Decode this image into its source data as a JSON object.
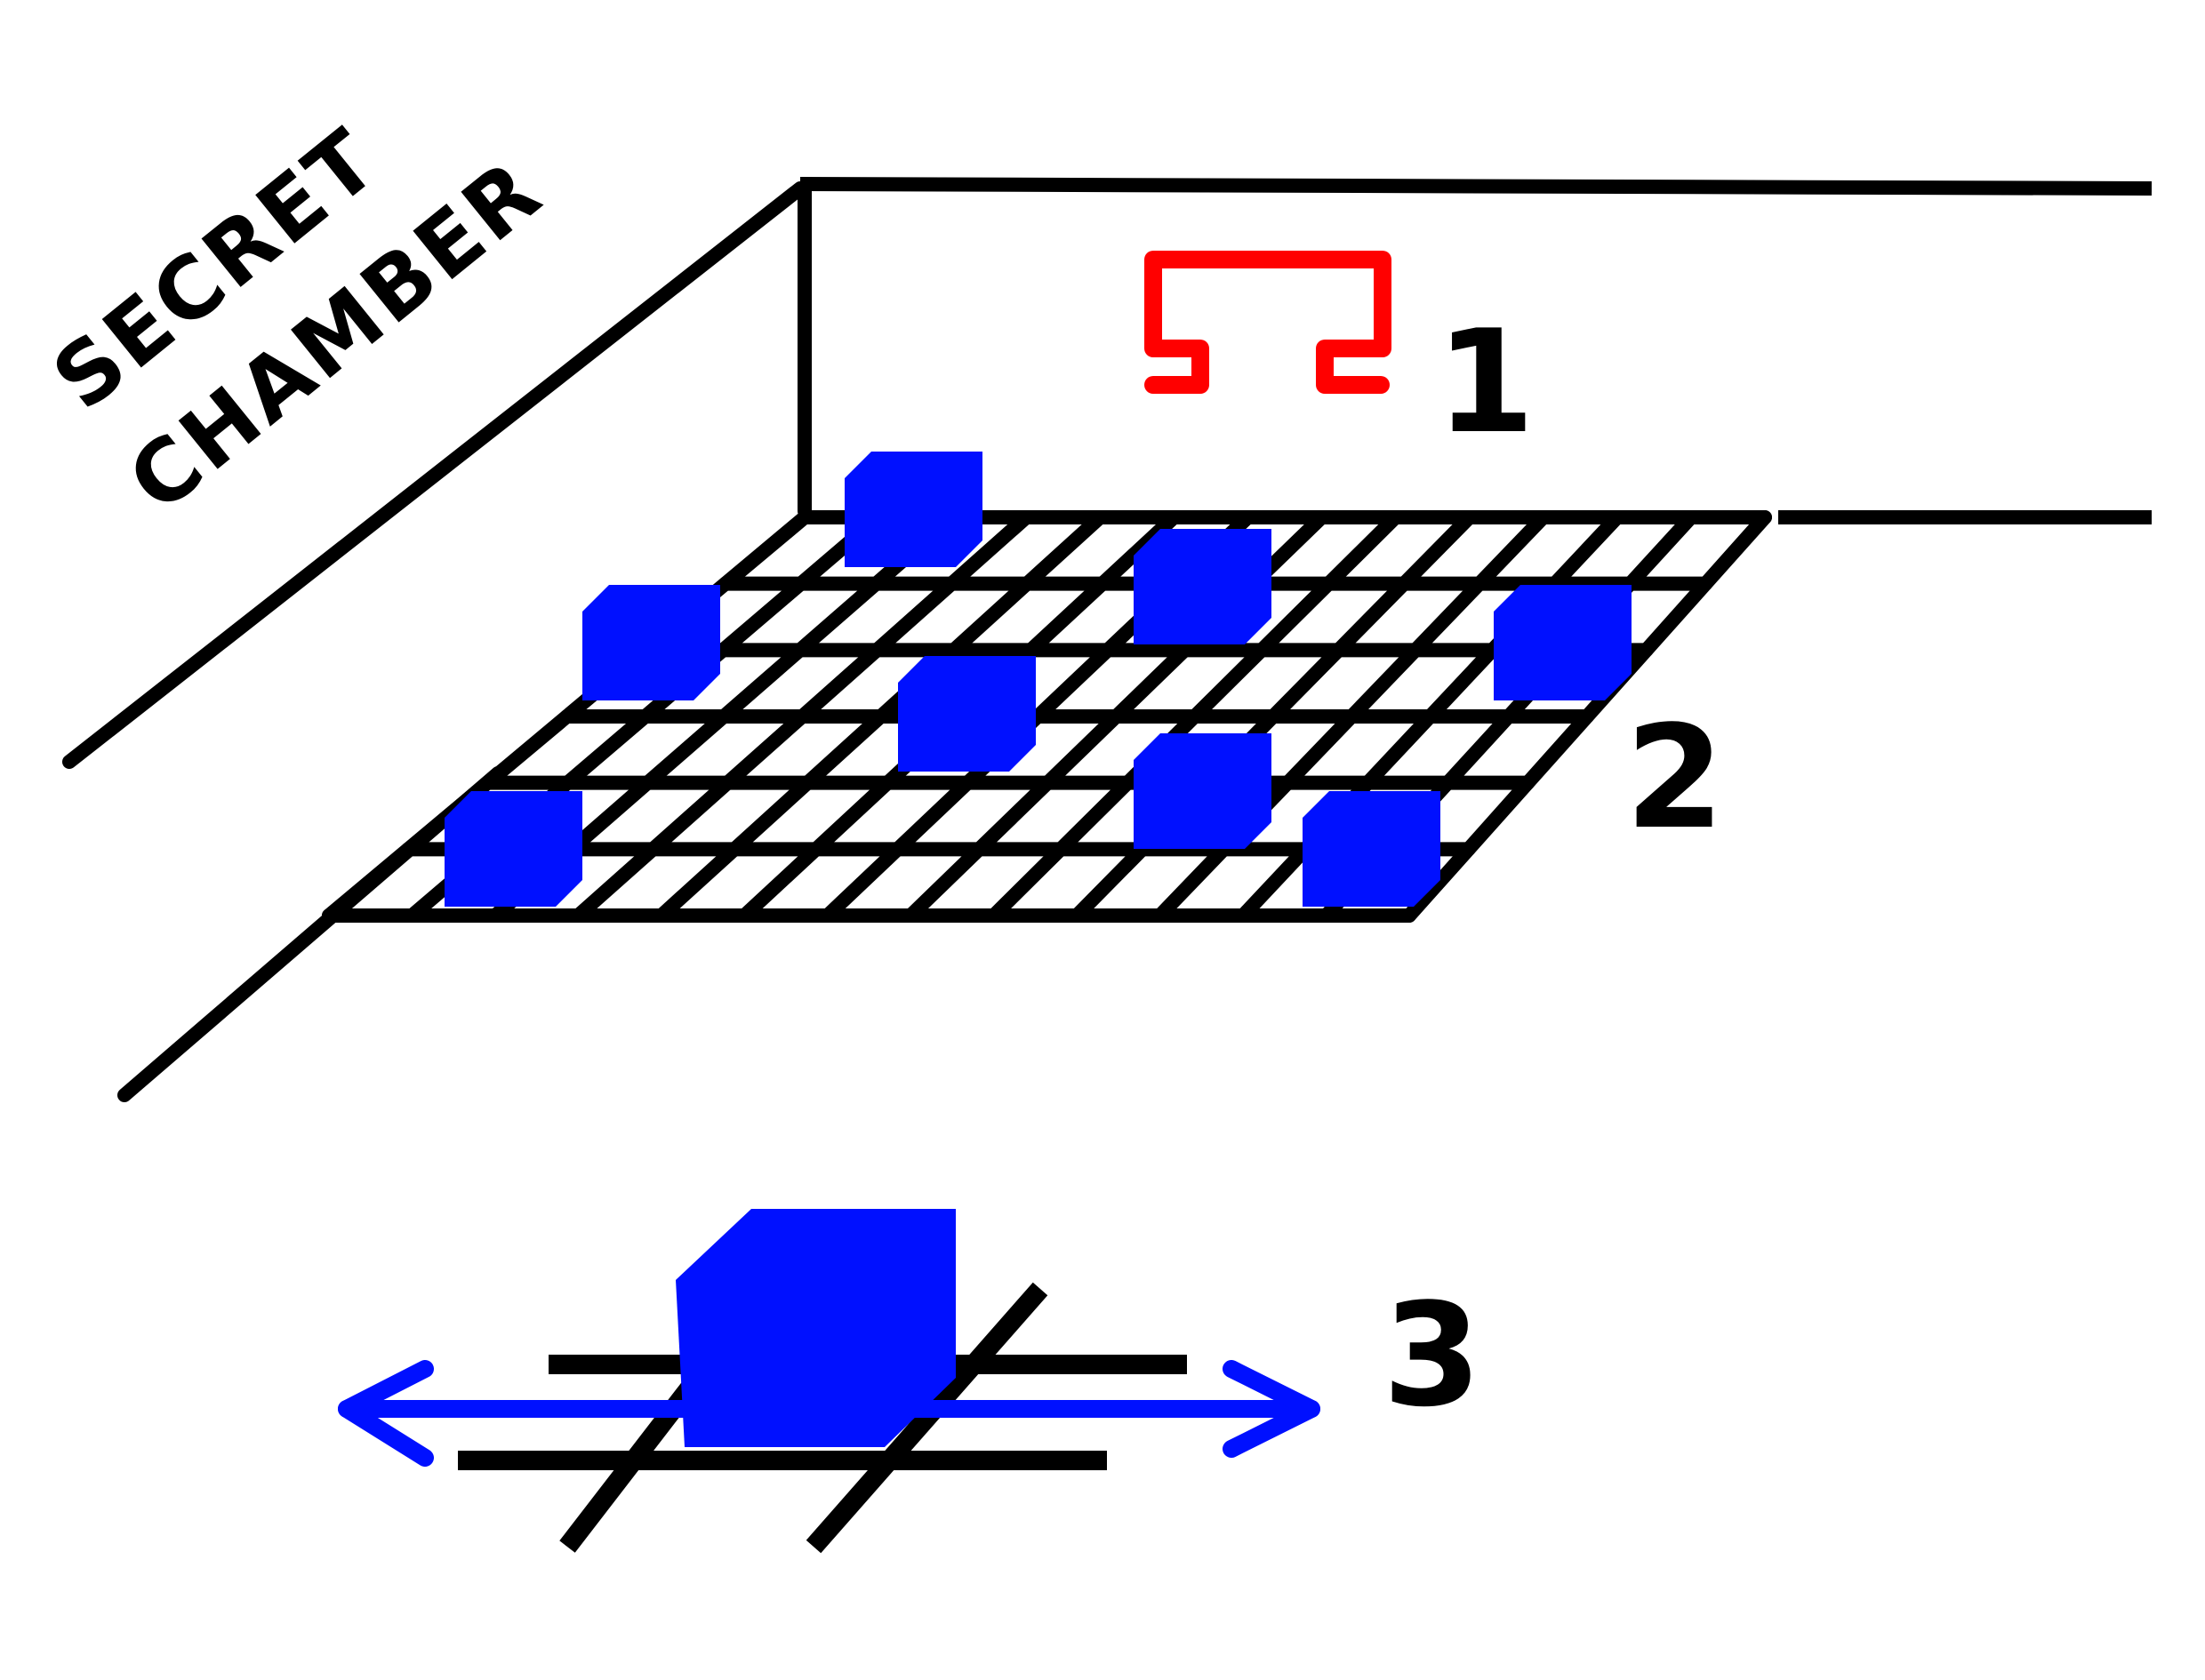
{
  "title_lines": [
    "SECRET",
    "CHAMBER"
  ],
  "step_labels": [
    "1",
    "2",
    "3"
  ],
  "colors": {
    "line": "#000000",
    "block": "#0010ff",
    "arrow": "#0010ff",
    "bracket": "#ff0000",
    "background": "#ffffff"
  },
  "icons": {
    "step1": "red-bracket-icon",
    "step2": "blue-block-icon",
    "step3": "double-arrow-icon"
  }
}
